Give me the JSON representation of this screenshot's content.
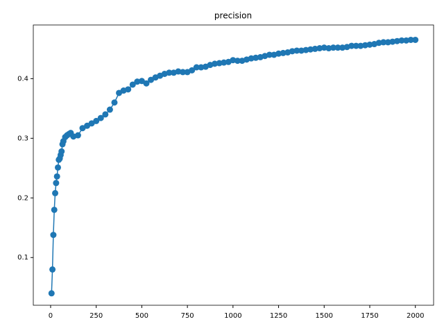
{
  "chart_data": {
    "type": "line",
    "title": "precision",
    "color": "#1f77b4",
    "markers": true,
    "x": [
      5,
      10,
      15,
      20,
      25,
      30,
      35,
      40,
      45,
      50,
      55,
      60,
      65,
      70,
      80,
      90,
      100,
      110,
      125,
      150,
      175,
      200,
      225,
      250,
      275,
      300,
      325,
      350,
      375,
      400,
      425,
      450,
      475,
      500,
      525,
      550,
      575,
      600,
      625,
      650,
      675,
      700,
      725,
      750,
      775,
      800,
      825,
      850,
      875,
      900,
      925,
      950,
      975,
      1000,
      1025,
      1050,
      1075,
      1100,
      1125,
      1150,
      1175,
      1200,
      1225,
      1250,
      1275,
      1300,
      1325,
      1350,
      1375,
      1400,
      1425,
      1450,
      1475,
      1500,
      1525,
      1550,
      1575,
      1600,
      1625,
      1650,
      1675,
      1700,
      1725,
      1750,
      1775,
      1800,
      1825,
      1850,
      1875,
      1900,
      1925,
      1950,
      1975,
      2000
    ],
    "values": [
      0.04,
      0.08,
      0.138,
      0.18,
      0.208,
      0.225,
      0.236,
      0.251,
      0.264,
      0.266,
      0.272,
      0.278,
      0.29,
      0.295,
      0.302,
      0.305,
      0.307,
      0.309,
      0.303,
      0.305,
      0.317,
      0.321,
      0.325,
      0.329,
      0.334,
      0.34,
      0.348,
      0.36,
      0.376,
      0.38,
      0.382,
      0.39,
      0.395,
      0.396,
      0.392,
      0.398,
      0.402,
      0.405,
      0.408,
      0.41,
      0.41,
      0.412,
      0.411,
      0.411,
      0.414,
      0.419,
      0.419,
      0.42,
      0.423,
      0.425,
      0.426,
      0.427,
      0.428,
      0.431,
      0.43,
      0.43,
      0.432,
      0.434,
      0.435,
      0.436,
      0.438,
      0.44,
      0.44,
      0.442,
      0.443,
      0.444,
      0.446,
      0.447,
      0.447,
      0.448,
      0.449,
      0.45,
      0.451,
      0.452,
      0.451,
      0.452,
      0.452,
      0.452,
      0.453,
      0.455,
      0.455,
      0.455,
      0.456,
      0.457,
      0.458,
      0.46,
      0.461,
      0.461,
      0.462,
      0.463,
      0.464,
      0.464,
      0.465,
      0.465
    ],
    "xlim": [
      -95,
      2100
    ],
    "ylim": [
      0.02,
      0.49
    ],
    "xticks": [
      0,
      250,
      500,
      750,
      1000,
      1250,
      1500,
      1750,
      2000
    ],
    "yticks": [
      0.1,
      0.2,
      0.3,
      0.4
    ]
  }
}
